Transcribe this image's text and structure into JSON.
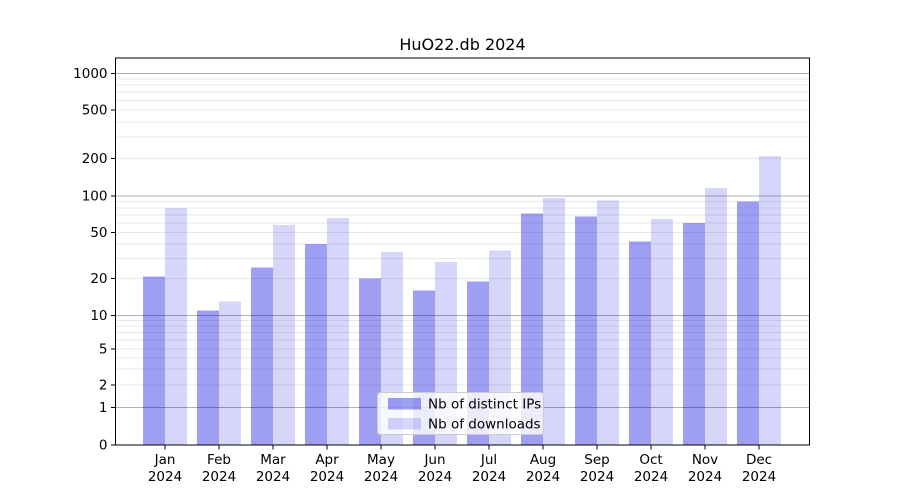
{
  "chart_data": {
    "type": "bar",
    "title": "HuO22.db 2024",
    "x_categories": [
      "Jan",
      "Feb",
      "Mar",
      "Apr",
      "May",
      "Jun",
      "Jul",
      "Aug",
      "Sep",
      "Oct",
      "Nov",
      "Dec"
    ],
    "x_year_line": "2024",
    "series": [
      {
        "name": "Nb of distinct IPs",
        "color": "rgba(0,0,221,0.38)",
        "values": [
          21,
          11,
          25,
          40,
          20,
          16,
          19,
          72,
          68,
          42,
          60,
          90
        ]
      },
      {
        "name": "Nb of downloads",
        "color": "rgba(0,0,221,0.16)",
        "values": [
          80,
          13,
          58,
          66,
          34,
          28,
          35,
          96,
          92,
          65,
          116,
          208
        ]
      }
    ],
    "y_axis": {
      "scale": "log-with-zero",
      "ticks": [
        0,
        1,
        2,
        5,
        10,
        20,
        50,
        100,
        200,
        500,
        1000
      ],
      "ylim": [
        0,
        1200
      ]
    },
    "legend": {
      "position": "lower-center",
      "entries": [
        "Nb of distinct IPs",
        "Nb of downloads"
      ]
    },
    "grid": true,
    "colors": {
      "major_gridline": "#b1b1b1",
      "minor_gridline": "#e9e9e9",
      "spine": "#000000",
      "text": "#000000",
      "legend_border": "#cccccc",
      "legend_background": "rgba(255,255,255,0.8)"
    }
  }
}
